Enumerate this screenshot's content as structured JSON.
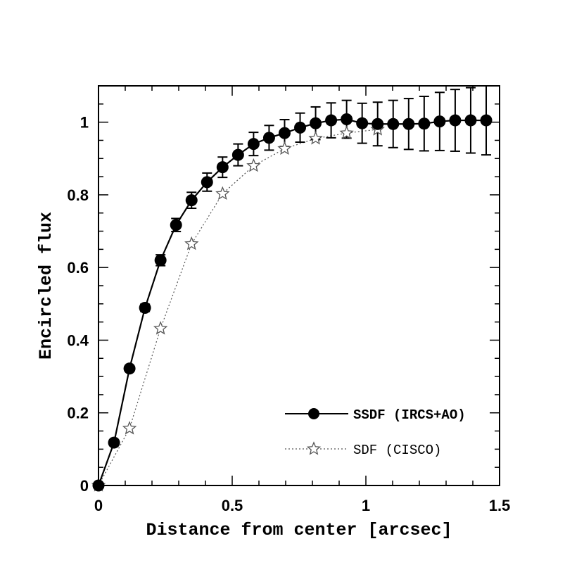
{
  "chart_data": {
    "type": "line",
    "xlabel": "Distance from center [arcsec]",
    "ylabel": "Encircled flux",
    "xlim": [
      0,
      1.5
    ],
    "ylim": [
      0,
      1.1
    ],
    "x_ticks": [
      "0",
      "0.5",
      "1",
      "1.5"
    ],
    "y_ticks": [
      "0",
      "0.2",
      "0.4",
      "0.6",
      "0.8",
      "1"
    ],
    "series": [
      {
        "name": "SSDF (IRCS+AO)",
        "marker": "filled-circle",
        "line": "solid",
        "color": "#000000",
        "points": [
          {
            "x": 0.0,
            "y": 0.0,
            "err": 0.0
          },
          {
            "x": 0.058,
            "y": 0.118,
            "err": 0.008
          },
          {
            "x": 0.116,
            "y": 0.322,
            "err": 0.008
          },
          {
            "x": 0.174,
            "y": 0.489,
            "err": 0.01
          },
          {
            "x": 0.232,
            "y": 0.62,
            "err": 0.015
          },
          {
            "x": 0.29,
            "y": 0.717,
            "err": 0.018
          },
          {
            "x": 0.348,
            "y": 0.785,
            "err": 0.022
          },
          {
            "x": 0.406,
            "y": 0.835,
            "err": 0.025
          },
          {
            "x": 0.464,
            "y": 0.876,
            "err": 0.028
          },
          {
            "x": 0.522,
            "y": 0.91,
            "err": 0.03
          },
          {
            "x": 0.58,
            "y": 0.94,
            "err": 0.032
          },
          {
            "x": 0.638,
            "y": 0.957,
            "err": 0.034
          },
          {
            "x": 0.696,
            "y": 0.97,
            "err": 0.037
          },
          {
            "x": 0.754,
            "y": 0.985,
            "err": 0.04
          },
          {
            "x": 0.812,
            "y": 0.997,
            "err": 0.045
          },
          {
            "x": 0.87,
            "y": 1.005,
            "err": 0.048
          },
          {
            "x": 0.928,
            "y": 1.008,
            "err": 0.052
          },
          {
            "x": 0.986,
            "y": 0.997,
            "err": 0.055
          },
          {
            "x": 1.044,
            "y": 0.995,
            "err": 0.06
          },
          {
            "x": 1.102,
            "y": 0.995,
            "err": 0.065
          },
          {
            "x": 1.16,
            "y": 0.995,
            "err": 0.07
          },
          {
            "x": 1.218,
            "y": 0.996,
            "err": 0.075
          },
          {
            "x": 1.276,
            "y": 1.002,
            "err": 0.08
          },
          {
            "x": 1.334,
            "y": 1.005,
            "err": 0.085
          },
          {
            "x": 1.392,
            "y": 1.005,
            "err": 0.09
          },
          {
            "x": 1.45,
            "y": 1.005,
            "err": 0.095
          }
        ]
      },
      {
        "name": "SDF (CISCO)",
        "marker": "open-star",
        "line": "dotted",
        "color": "#555555",
        "points": [
          {
            "x": 0.0,
            "y": 0.0
          },
          {
            "x": 0.116,
            "y": 0.157
          },
          {
            "x": 0.232,
            "y": 0.432
          },
          {
            "x": 0.348,
            "y": 0.665
          },
          {
            "x": 0.464,
            "y": 0.803
          },
          {
            "x": 0.58,
            "y": 0.88
          },
          {
            "x": 0.696,
            "y": 0.927
          },
          {
            "x": 0.812,
            "y": 0.955
          },
          {
            "x": 0.928,
            "y": 0.97
          },
          {
            "x": 1.044,
            "y": 0.98
          }
        ]
      }
    ],
    "legend": [
      "SSDF (IRCS+AO)",
      "SDF (CISCO)"
    ],
    "legend_placement": "bottom-right"
  }
}
